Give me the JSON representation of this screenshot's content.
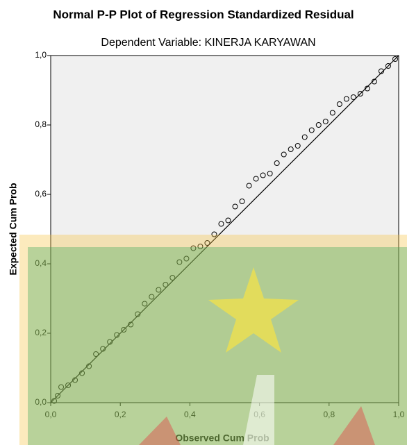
{
  "chart_data": {
    "type": "scatter",
    "title": "Normal P-P Plot of Regression Standardized Residual",
    "subtitle": "Dependent Variable: KINERJA KARYAWAN",
    "xlabel": "Observed Cum Prob",
    "ylabel": "Expected Cum Prob",
    "xlim": [
      0,
      1
    ],
    "ylim": [
      0,
      1
    ],
    "xticks": [
      {
        "value": 0,
        "label": "0,0"
      },
      {
        "value": 0.2,
        "label": "0,2"
      },
      {
        "value": 0.4,
        "label": "0,4"
      },
      {
        "value": 0.6,
        "label": "0,6"
      },
      {
        "value": 0.8,
        "label": "0,8"
      },
      {
        "value": 1,
        "label": "1,0"
      }
    ],
    "yticks": [
      {
        "value": 0,
        "label": "0,0"
      },
      {
        "value": 0.2,
        "label": "0,2"
      },
      {
        "value": 0.4,
        "label": "0,4"
      },
      {
        "value": 0.6,
        "label": "0,6"
      },
      {
        "value": 0.8,
        "label": "0,8"
      },
      {
        "value": 1,
        "label": "1,0"
      }
    ],
    "reference_line": true,
    "series": [
      {
        "color": "#000000",
        "x": [
          0.01,
          0.02,
          0.03,
          0.05,
          0.07,
          0.09,
          0.11,
          0.13,
          0.15,
          0.17,
          0.19,
          0.21,
          0.23,
          0.25,
          0.27,
          0.29,
          0.31,
          0.33,
          0.35,
          0.37,
          0.39,
          0.41,
          0.43,
          0.45,
          0.47,
          0.49,
          0.51,
          0.53,
          0.55,
          0.57,
          0.59,
          0.61,
          0.63,
          0.65,
          0.67,
          0.69,
          0.71,
          0.73,
          0.75,
          0.77,
          0.79,
          0.81,
          0.83,
          0.85,
          0.87,
          0.89,
          0.91,
          0.93,
          0.95,
          0.97,
          0.99
        ],
        "values": [
          0.005,
          0.02,
          0.045,
          0.05,
          0.065,
          0.085,
          0.105,
          0.14,
          0.155,
          0.175,
          0.195,
          0.21,
          0.225,
          0.255,
          0.285,
          0.305,
          0.325,
          0.34,
          0.36,
          0.405,
          0.415,
          0.445,
          0.45,
          0.46,
          0.485,
          0.515,
          0.525,
          0.565,
          0.58,
          0.625,
          0.645,
          0.655,
          0.66,
          0.69,
          0.715,
          0.73,
          0.74,
          0.765,
          0.785,
          0.8,
          0.81,
          0.835,
          0.86,
          0.875,
          0.88,
          0.89,
          0.905,
          0.925,
          0.955,
          0.97,
          0.99
        ]
      }
    ]
  }
}
